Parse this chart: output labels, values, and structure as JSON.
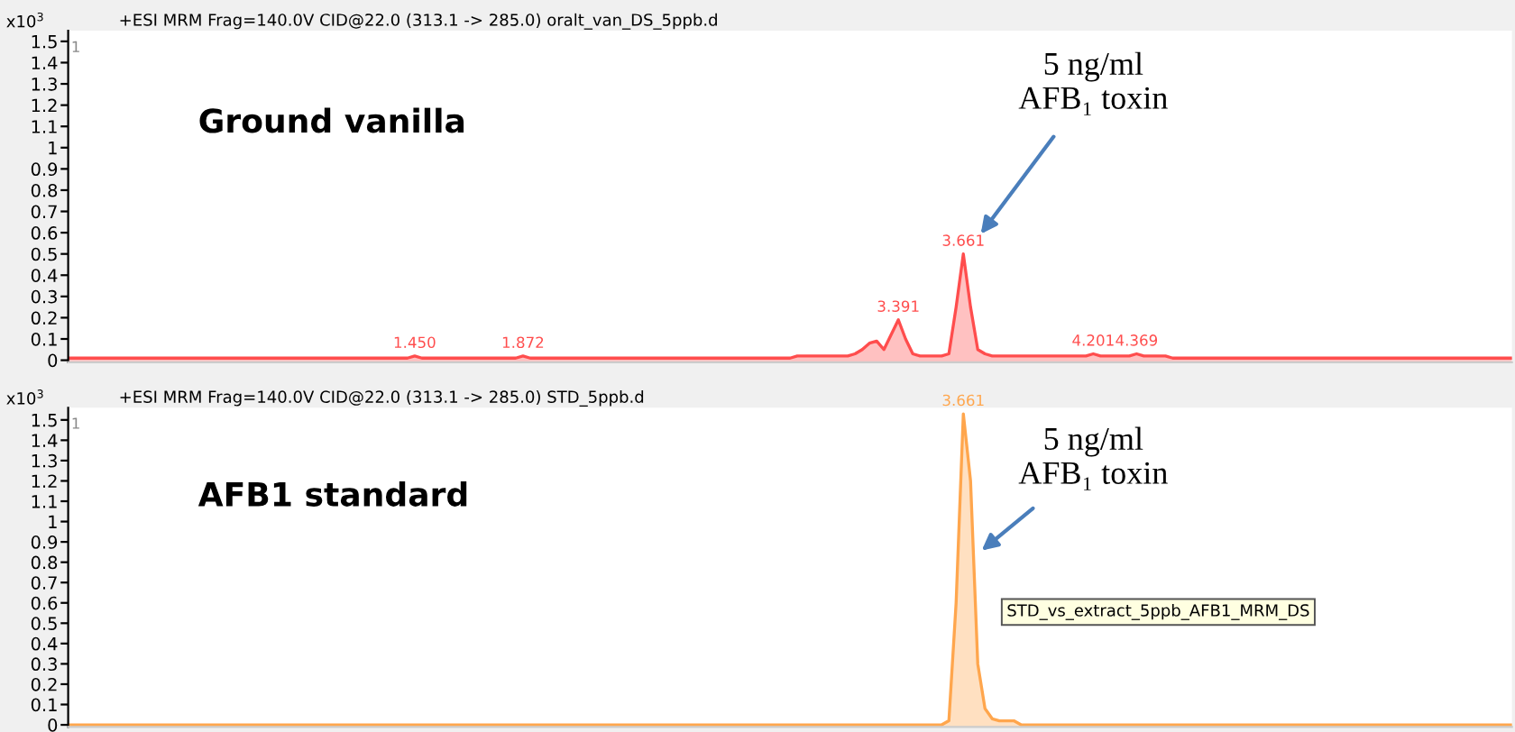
{
  "chart_data": [
    {
      "type": "area",
      "title": "+ESI MRM Frag=140.0V CID@22.0 (313.1 -> 285.0) oralt_van_DS_5ppb.d",
      "ylabel": "x10$^{3}$",
      "ylim": [
        -0.01,
        1.55
      ],
      "yticks": [
        0,
        0.1,
        0.2,
        0.3,
        0.4,
        0.5,
        0.6,
        0.7,
        0.8,
        0.9,
        1,
        1.1,
        1.2,
        1.3,
        1.4,
        1.5
      ],
      "tick_labels": "y",
      "grid": false,
      "categories": [
        null,
        null,
        null,
        null,
        null,
        null,
        null,
        null,
        null,
        null,
        null,
        null,
        null,
        null,
        null,
        null,
        null,
        null,
        null,
        null,
        null,
        null,
        null,
        null,
        null,
        null,
        null,
        null,
        null,
        null,
        null,
        null,
        null,
        null,
        null,
        null,
        null,
        null,
        null,
        null,
        null,
        null,
        null,
        null,
        null,
        null,
        null,
        null,
        null,
        null,
        null,
        null,
        null,
        null,
        null,
        null,
        null,
        null,
        null,
        null,
        null,
        null,
        null,
        null,
        null,
        null,
        null,
        null,
        null,
        null,
        null,
        null,
        null,
        null,
        null,
        null,
        null,
        null,
        null,
        null,
        null,
        null,
        null,
        null,
        null,
        null,
        null,
        null,
        null,
        null,
        null,
        null,
        null,
        null,
        null,
        null,
        null,
        null,
        null,
        null,
        null,
        null,
        null,
        null,
        null,
        null,
        null,
        null,
        null,
        null,
        null,
        null,
        null,
        null,
        null,
        null,
        null,
        null,
        null,
        null,
        null,
        null,
        null,
        null,
        null,
        null,
        null,
        null,
        null,
        null,
        null,
        null,
        null,
        null,
        null,
        null,
        null,
        null,
        null,
        null,
        null,
        null,
        null,
        null,
        null,
        null,
        null,
        null,
        null,
        null,
        null,
        null,
        null,
        null,
        null,
        null,
        null,
        null,
        null,
        null,
        null,
        null,
        null,
        null,
        null,
        null,
        null,
        null,
        null,
        null,
        null,
        null,
        null,
        null,
        null,
        null,
        null,
        null,
        null,
        null,
        null,
        null,
        null,
        null,
        null,
        null,
        null,
        null,
        null,
        null,
        null,
        null,
        null,
        null,
        null,
        null,
        null,
        null,
        null,
        null,
        null
      ],
      "series": [
        {
          "color": "#ff4d4d",
          "values": [
            0.01,
            0.01,
            0.01,
            0.01,
            0.01,
            0.01,
            0.01,
            0.01,
            0.01,
            0.01,
            0.01,
            0.01,
            0.01,
            0.01,
            0.01,
            0.01,
            0.01,
            0.01,
            0.01,
            0.01,
            0.01,
            0.01,
            0.01,
            0.01,
            0.01,
            0.01,
            0.01,
            0.01,
            0.01,
            0.01,
            0.01,
            0.01,
            0.01,
            0.01,
            0.01,
            0.01,
            0.01,
            0.01,
            0.01,
            0.01,
            0.01,
            0.01,
            0.01,
            0.01,
            0.01,
            0.01,
            0.01,
            0.01,
            0.02,
            0.01,
            0.01,
            0.01,
            0.01,
            0.01,
            0.01,
            0.01,
            0.01,
            0.01,
            0.01,
            0.01,
            0.01,
            0.01,
            0.01,
            0.02,
            0.01,
            0.01,
            0.01,
            0.01,
            0.01,
            0.01,
            0.01,
            0.01,
            0.01,
            0.01,
            0.01,
            0.01,
            0.01,
            0.01,
            0.01,
            0.01,
            0.01,
            0.01,
            0.01,
            0.01,
            0.01,
            0.01,
            0.01,
            0.01,
            0.01,
            0.01,
            0.01,
            0.01,
            0.01,
            0.01,
            0.01,
            0.01,
            0.01,
            0.01,
            0.01,
            0.01,
            0.01,
            0.02,
            0.02,
            0.02,
            0.02,
            0.02,
            0.02,
            0.02,
            0.02,
            0.03,
            0.05,
            0.08,
            0.09,
            0.05,
            0.12,
            0.19,
            0.1,
            0.03,
            0.02,
            0.02,
            0.02,
            0.02,
            0.03,
            0.25,
            0.5,
            0.25,
            0.05,
            0.03,
            0.02,
            0.02,
            0.02,
            0.02,
            0.02,
            0.02,
            0.02,
            0.02,
            0.02,
            0.02,
            0.02,
            0.02,
            0.02,
            0.02,
            0.03,
            0.02,
            0.02,
            0.02,
            0.02,
            0.02,
            0.03,
            0.02,
            0.02,
            0.02,
            0.02,
            0.01,
            0.01,
            0.01,
            0.01,
            0.01,
            0.01,
            0.01,
            0.01,
            0.01,
            0.01,
            0.01,
            0.01,
            0.01,
            0.01,
            0.01,
            0.01,
            0.01,
            0.01,
            0.01,
            0.01,
            0.01,
            0.01,
            0.01,
            0.01,
            0.01,
            0.01,
            0.01,
            0.01,
            0.01,
            0.01,
            0.01,
            0.01,
            0.01,
            0.01,
            0.01,
            0.01,
            0.01,
            0.01,
            0.01,
            0.01,
            0.01,
            0.01,
            0.01,
            0.01,
            0.01,
            0.01,
            0.01,
            0.01
          ]
        }
      ],
      "annotations": [
        "1",
        "Ground vanilla",
        "5 ng/ml\nAFB₁ toxin",
        {
          "text": "1.450",
          "y": 0.02
        },
        {
          "text": "1.872",
          "y": 0.02
        },
        {
          "text": "3.391",
          "y": 0.19
        },
        {
          "text": "3.661",
          "y": 0.5
        },
        {
          "text": "4.201",
          "y": 0.03
        },
        {
          "text": "4.369",
          "y": 0.03
        }
      ]
    },
    {
      "type": "area",
      "title": "+ESI MRM Frag=140.0V CID@22.0 (313.1 -> 285.0) STD_5ppb.d",
      "ylabel": "x10$^{3}$",
      "ylim": [
        -0.01,
        1.56
      ],
      "yticks": [
        0,
        0.1,
        0.2,
        0.3,
        0.4,
        0.5,
        0.6,
        0.7,
        0.8,
        0.9,
        1,
        1.1,
        1.2,
        1.3,
        1.4,
        1.5
      ],
      "tick_labels": "y",
      "grid": false,
      "categories": [
        null,
        null,
        null,
        null,
        null,
        null,
        null,
        null,
        null,
        null,
        null,
        null,
        null,
        null,
        null,
        null,
        null,
        null,
        null,
        null,
        null,
        null,
        null,
        null,
        null,
        null,
        null,
        null,
        null,
        null,
        null,
        null,
        null,
        null,
        null,
        null,
        null,
        null,
        null,
        null,
        null,
        null,
        null,
        null,
        null,
        null,
        null,
        null,
        null,
        null,
        null,
        null,
        null,
        null,
        null,
        null,
        null,
        null,
        null,
        null,
        null,
        null,
        null,
        null,
        null,
        null,
        null,
        null,
        null,
        null,
        null,
        null,
        null,
        null,
        null,
        null,
        null,
        null,
        null,
        null,
        null,
        null,
        null,
        null,
        null,
        null,
        null,
        null,
        null,
        null,
        null,
        null,
        null,
        null,
        null,
        null,
        null,
        null,
        null,
        null,
        null,
        null,
        null,
        null,
        null,
        null,
        null,
        null,
        null,
        null,
        null,
        null,
        null,
        null,
        null,
        null,
        null,
        null,
        null,
        null,
        null,
        null,
        null,
        null,
        null,
        null,
        null,
        null,
        null,
        null,
        null,
        null,
        null,
        null,
        null,
        null,
        null,
        null,
        null,
        null,
        null,
        null,
        null,
        null,
        null,
        null,
        null,
        null,
        null,
        null,
        null,
        null,
        null,
        null,
        null,
        null,
        null,
        null,
        null,
        null,
        null,
        null,
        null,
        null,
        null,
        null,
        null,
        null,
        null,
        null,
        null,
        null,
        null,
        null,
        null,
        null,
        null,
        null,
        null,
        null,
        null,
        null,
        null,
        null,
        null,
        null,
        null,
        null,
        null,
        null,
        null,
        null,
        null,
        null,
        null,
        null,
        null,
        null,
        null,
        null,
        null
      ],
      "series": [
        {
          "color": "#ffa64d",
          "values": [
            0,
            0,
            0,
            0,
            0,
            0,
            0,
            0,
            0,
            0,
            0,
            0,
            0,
            0,
            0,
            0,
            0,
            0,
            0,
            0,
            0,
            0,
            0,
            0,
            0,
            0,
            0,
            0,
            0,
            0,
            0,
            0,
            0,
            0,
            0,
            0,
            0,
            0,
            0,
            0,
            0,
            0,
            0,
            0,
            0,
            0,
            0,
            0,
            0,
            0,
            0,
            0,
            0,
            0,
            0,
            0,
            0,
            0,
            0,
            0,
            0,
            0,
            0,
            0,
            0,
            0,
            0,
            0,
            0,
            0,
            0,
            0,
            0,
            0,
            0,
            0,
            0,
            0,
            0,
            0,
            0,
            0,
            0,
            0,
            0,
            0,
            0,
            0,
            0,
            0,
            0,
            0,
            0,
            0,
            0,
            0,
            0,
            0,
            0,
            0,
            0,
            0,
            0,
            0,
            0,
            0,
            0,
            0,
            0,
            0,
            0,
            0,
            0,
            0,
            0,
            0,
            0,
            0,
            0,
            0,
            0,
            0,
            0.02,
            0.6,
            1.53,
            1.2,
            0.3,
            0.08,
            0.03,
            0.02,
            0.02,
            0.02,
            0,
            0,
            0,
            0,
            0,
            0,
            0,
            0,
            0,
            0,
            0,
            0,
            0,
            0,
            0,
            0,
            0,
            0,
            0,
            0,
            0,
            0,
            0,
            0,
            0,
            0,
            0,
            0,
            0,
            0,
            0,
            0,
            0,
            0,
            0,
            0,
            0,
            0,
            0,
            0,
            0,
            0,
            0,
            0,
            0,
            0,
            0,
            0,
            0,
            0,
            0,
            0,
            0,
            0,
            0,
            0,
            0,
            0,
            0,
            0,
            0,
            0,
            0,
            0,
            0,
            0,
            0,
            0,
            0
          ]
        }
      ],
      "annotations": [
        "1",
        "AFB1 standard",
        "5 ng/ml\nAFB₁ toxin",
        {
          "text": "3.661",
          "y": 1.53
        },
        "STD_vs_extract_5ppb_AFB1_MRM_DS"
      ]
    }
  ]
}
